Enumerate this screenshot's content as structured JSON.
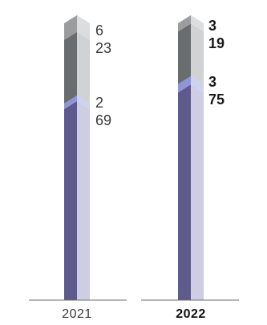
{
  "chart_data": {
    "type": "bar",
    "stacked": true,
    "categories": [
      "2021",
      "2022"
    ],
    "category_bold": [
      false,
      true
    ],
    "series": [
      {
        "values": [
          69,
          75
        ],
        "color": "#5e5a8c",
        "color_light": "#cfcde3"
      },
      {
        "values": [
          2,
          3
        ],
        "color": "#8e96d8",
        "color_light": "#cdd2ee"
      },
      {
        "values": [
          23,
          19
        ],
        "color": "#6a6d70",
        "color_light": "#d0d2d4"
      },
      {
        "values": [
          6,
          3
        ],
        "color": "#9a9c9e",
        "color_light": "#dcdddf"
      }
    ],
    "data_labels": [
      {
        "category": "2021",
        "top": [
          "6",
          "23"
        ],
        "mid": [
          "2",
          "69"
        ],
        "bold": false
      },
      {
        "category": "2022",
        "top": [
          "3",
          "19"
        ],
        "mid": [
          "3",
          "75"
        ],
        "bold": true
      }
    ],
    "title": "",
    "xlabel": "",
    "ylabel": "",
    "ylim": [
      0,
      100
    ],
    "grid": false,
    "legend": "none"
  }
}
